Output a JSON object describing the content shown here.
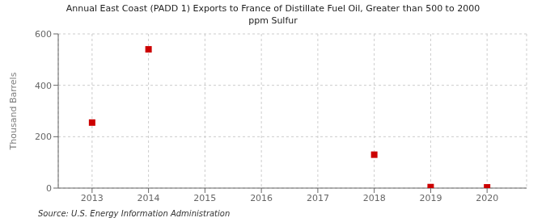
{
  "chart_data": {
    "type": "scatter",
    "title": "Annual East Coast (PADD 1) Exports to France of Distillate Fuel Oil, Greater than 500 to 2000\nppm Sulfur",
    "ylabel": "Thousand Barrels",
    "annotations": [
      "Source: U.S. Energy Information Administration"
    ],
    "x": [
      2013,
      2014,
      2018,
      2019,
      2020
    ],
    "values": [
      255,
      540,
      130,
      4,
      3
    ],
    "xlim": [
      2012.4,
      2020.7
    ],
    "ylim": [
      0,
      600
    ],
    "xticks": [
      2013,
      2014,
      2015,
      2016,
      2017,
      2018,
      2019,
      2020
    ],
    "yticks": [
      0,
      200,
      400,
      600
    ],
    "color": "#cc0000",
    "marker": "square",
    "grid": true
  }
}
